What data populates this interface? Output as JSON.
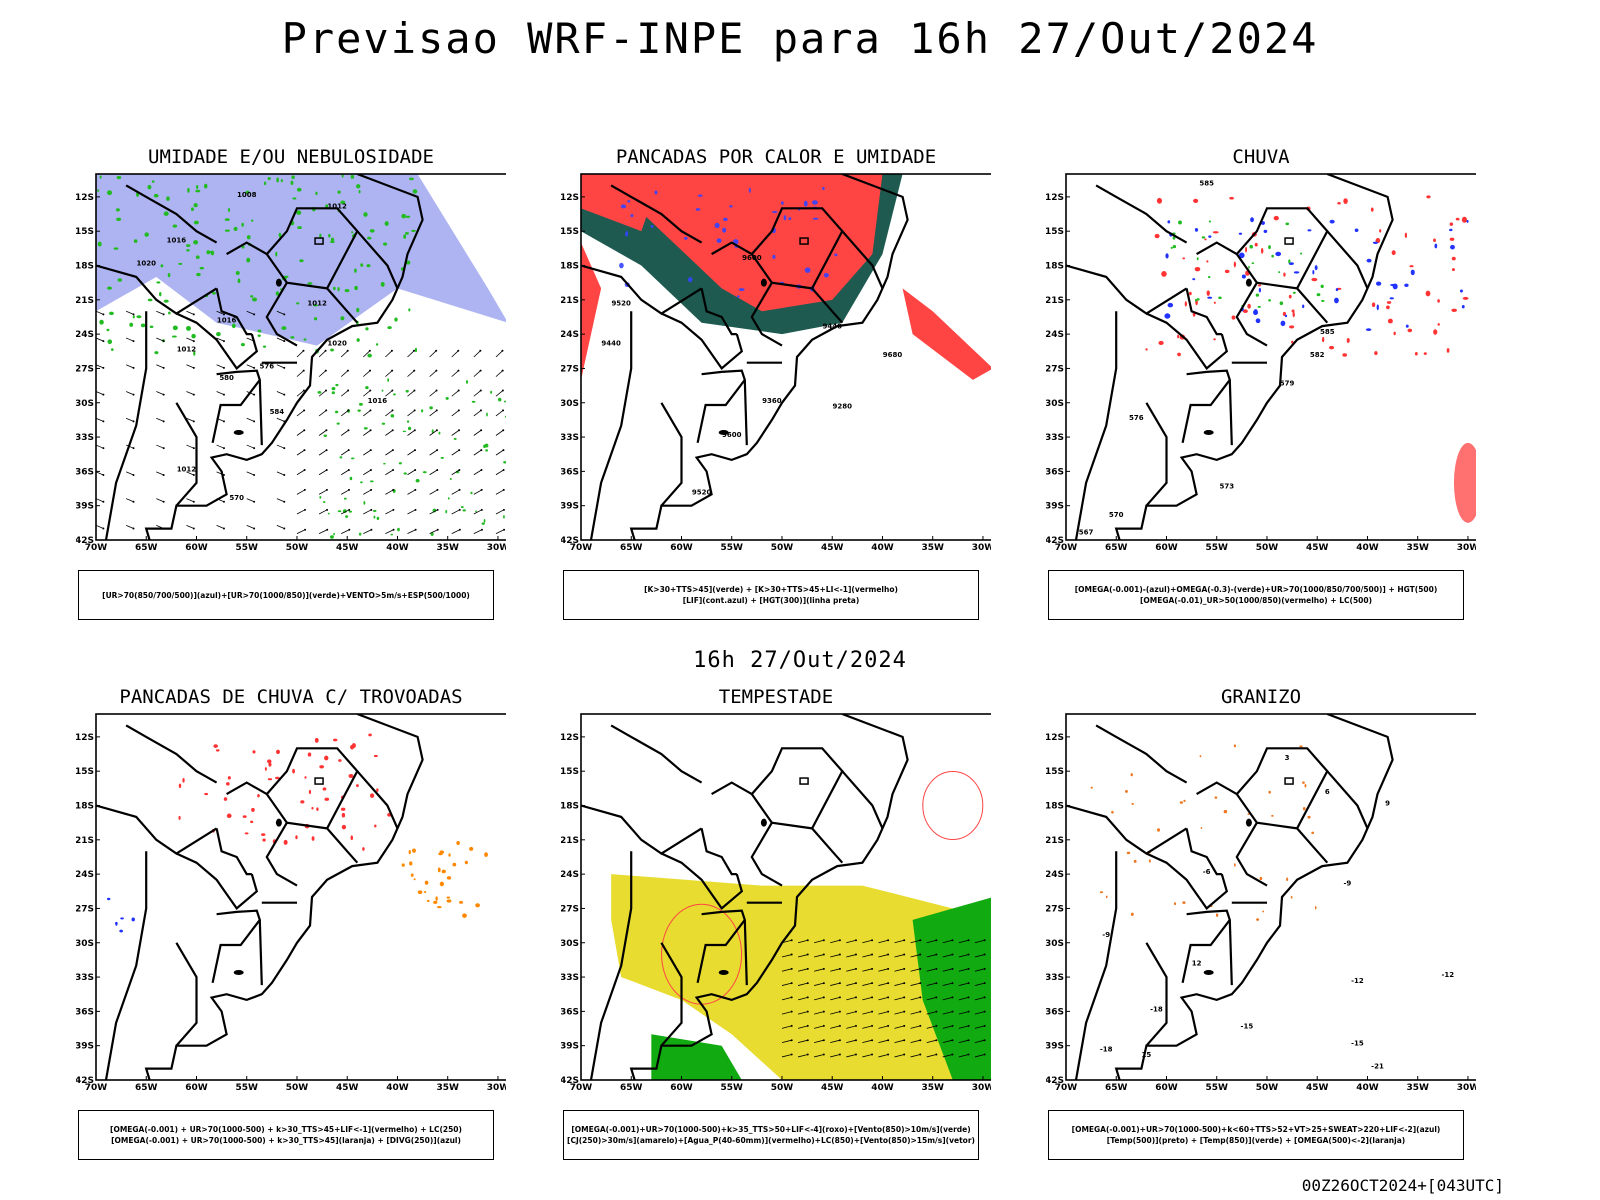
{
  "header": {
    "title": "Previsao WRF-INPE  para 16h 27/Out/2024"
  },
  "mid_time": "16h 27/Out/2024",
  "footer": "00Z26OCT2024+[043UTC]",
  "axes": {
    "lat_labels": [
      "12S",
      "15S",
      "18S",
      "21S",
      "24S",
      "27S",
      "30S",
      "33S",
      "36S",
      "39S",
      "42S"
    ],
    "lon_labels": [
      "70W",
      "65W",
      "60W",
      "55W",
      "50W",
      "45W",
      "40W",
      "35W",
      "30W"
    ]
  },
  "panels": [
    {
      "title": "UMIDADE E/OU NEBULOSIDADE",
      "legend": [
        "[UR>70(850/700/500)](azul)+[UR>70(1000/850)](verde)+VENTO>5m/s+ESP(500/1000)"
      ],
      "contour_labels": [
        "1008",
        "1012",
        "1016",
        "1020",
        "1012",
        "1016",
        "1012",
        "1020",
        "1016",
        "1012",
        "576",
        "580",
        "584",
        "570"
      ],
      "colors": {
        "blue": "#aab0f0",
        "green": "#22bb22",
        "red": "#ff3333",
        "contour": "#000000"
      }
    },
    {
      "title": "PANCADAS POR CALOR E UMIDADE",
      "legend": [
        "[K>30+TTS>45](verde) + [K>30+TTS>45+LI<-1](vermelho)",
        "[LIF](cont.azul) + [HGT(300)](linha preta)"
      ],
      "contour_labels": [
        "9600",
        "9520",
        "9440",
        "9360",
        "9280",
        "9600",
        "9520",
        "9440",
        "9680"
      ],
      "colors": {
        "teal": "#1e5a50",
        "red": "#ff4444",
        "blue": "#3344ff",
        "contour": "#000000"
      }
    },
    {
      "title": "CHUVA",
      "legend": [
        "[OMEGA(-0.001)-(azul)+OMEGA(-0.3)-(verde)+UR>70(1000/850/700/500)] + HGT(500)",
        "[OMEGA(-0.01)_UR>50(1000/850)(vermelho) + LC(500)"
      ],
      "contour_labels": [
        "585",
        "582",
        "579",
        "576",
        "573",
        "570",
        "567",
        "585"
      ],
      "colors": {
        "red": "#ff3333",
        "blue": "#2233ff",
        "green": "#22bb22",
        "contour": "#000000"
      }
    },
    {
      "title": "PANCADAS DE CHUVA C/ TROVOADAS",
      "legend": [
        "[OMEGA(-0.001) + UR>70(1000-500) + k>30_TTS>45+LIF<-1](vermelho) + LC(250)",
        "[OMEGA(-0.001) + UR>70(1000-500) + k>30_TTS>45](laranja) + [DIVG(250)](azul)"
      ],
      "contour_labels": [],
      "colors": {
        "red": "#ff3333",
        "orange": "#ff8800",
        "blue": "#2233ff",
        "contour": "#000000"
      }
    },
    {
      "title": "TEMPESTADE",
      "legend": [
        "[OMEGA(-0.001)+UR>70(1000-500)+k>35_TTS>50+LIF<-4](roxo)+[Vento(850)>10m/s](verde)",
        "[CJ(250)>30m/s](amarelo)+[Agua_P(40-60mm)](vermelho)+LC(850)+[Vento(850)>15m/s](vetor)"
      ],
      "contour_labels": [],
      "colors": {
        "yellow": "#e8dc30",
        "green": "#11aa11",
        "red": "#ff4444",
        "contour": "#000000"
      }
    },
    {
      "title": "GRANIZO",
      "legend": [
        "[OMEGA(-0.001)+UR>70(1000-500)+k<60+TTS>52+VT>25+SWEAT>220+LIF<-2](azul)",
        "[Temp(500)](preto) + [Temp(850)](verde) + [OMEGA(500)<-2](laranja)"
      ],
      "contour_labels": [
        "-9",
        "-6",
        "-9",
        "-12",
        "-15",
        "-18",
        "-18",
        "-21",
        "-12",
        "-15",
        "3",
        "6",
        "9",
        "12",
        "15"
      ],
      "colors": {
        "green": "#22cc22",
        "orange": "#ee7722",
        "contour": "#000000"
      }
    }
  ]
}
